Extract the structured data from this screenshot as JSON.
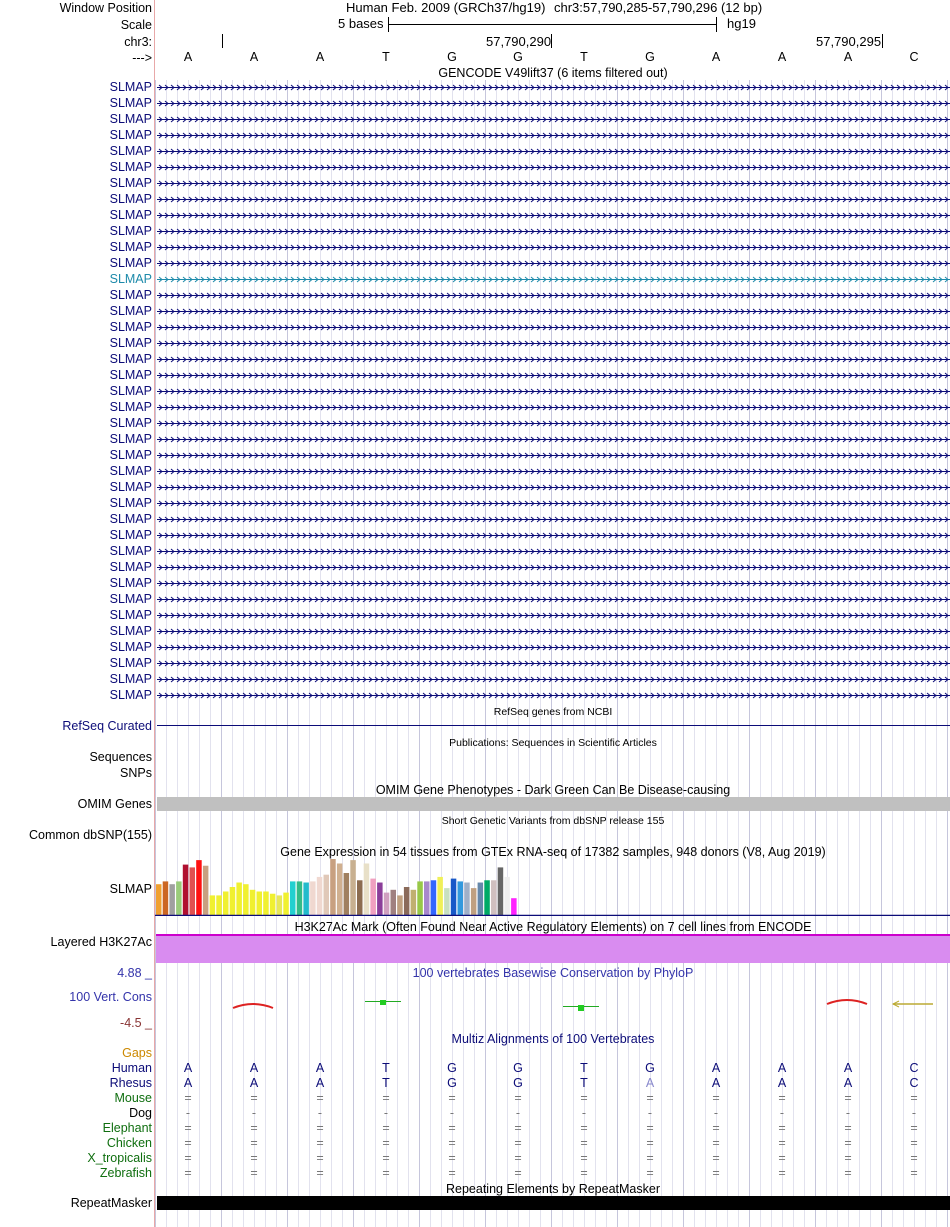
{
  "header": {
    "window_position_label": "Window Position",
    "assembly": "Human Feb. 2009 (GRCh37/hg19)",
    "position": "chr3:57,790,285-57,790,296 (12 bp)",
    "scale_label": "Scale",
    "scale_text": "5 bases",
    "scale_db": "hg19",
    "chrom_label": "chr3:",
    "coord1": "57,790,290",
    "coord2": "57,790,295",
    "strand_label": "--->"
  },
  "sequence": [
    "A",
    "A",
    "A",
    "T",
    "G",
    "G",
    "T",
    "G",
    "A",
    "A",
    "A",
    "C"
  ],
  "gencode": {
    "title": "GENCODE V49lift37 (6 items filtered out)",
    "gene": "SLMAP",
    "count": 39,
    "highlight_index": 12,
    "colors": {
      "normal": "#0c0c78",
      "highlight": "#1d8aaa"
    }
  },
  "refseq": {
    "label": "RefSeq Curated",
    "title": "RefSeq genes from NCBI"
  },
  "publications": {
    "title": "Publications: Sequences in Scientific Articles",
    "label1": "Sequences",
    "label2": "SNPs"
  },
  "omim": {
    "label": "OMIM Genes",
    "title": "OMIM Gene Phenotypes - Dark Green Can Be Disease-causing",
    "color": "#0f6e0f"
  },
  "dbsnp": {
    "label": "Common dbSNP(155)",
    "title": "Short Genetic Variants from dbSNP release 155"
  },
  "gtex": {
    "label": "SLMAP",
    "title": "Gene Expression in 54 tissues from GTEx RNA-seq of 17382 samples, 948 donors (V8, Aug 2019)",
    "values": [
      0.55,
      0.6,
      0.55,
      0.6,
      0.9,
      0.85,
      0.98,
      0.88,
      0.35,
      0.35,
      0.42,
      0.5,
      0.58,
      0.55,
      0.45,
      0.42,
      0.42,
      0.38,
      0.35,
      0.4,
      0.6,
      0.6,
      0.58,
      0.6,
      0.68,
      0.72,
      1.0,
      0.92,
      0.75,
      0.98,
      0.62,
      0.92,
      0.65,
      0.58,
      0.4,
      0.45,
      0.35,
      0.5,
      0.45,
      0.6,
      0.6,
      0.62,
      0.68,
      0.48,
      0.65,
      0.6,
      0.58,
      0.48,
      0.58,
      0.62,
      0.62,
      0.85,
      0.68,
      0.3
    ],
    "colors": [
      "#f0a030",
      "#cc6622",
      "#a0a0a0",
      "#9acc7a",
      "#b01030",
      "#e05050",
      "#ff1111",
      "#c8a080",
      "#f0f030",
      "#f0f030",
      "#f0f030",
      "#f0f030",
      "#f0f030",
      "#f0f030",
      "#f0f030",
      "#f0f030",
      "#f0f030",
      "#f0f030",
      "#e8e858",
      "#f0f030",
      "#22d0d0",
      "#33bb88",
      "#22bbcc",
      "#f0d8d0",
      "#f0d8d0",
      "#e0c8b8",
      "#c8a080",
      "#d0b090",
      "#a08060",
      "#c8b090",
      "#8c6c50",
      "#e8e0c8",
      "#f0a0c0",
      "#8b3e9a",
      "#d0a0c0",
      "#a08080",
      "#c0a080",
      "#8a6a5a",
      "#c0b070",
      "#98c848",
      "#a888cc",
      "#3366ff",
      "#f0f058",
      "#c8e0c0",
      "#1858c8",
      "#3399dd",
      "#a0b0c8",
      "#c0a080",
      "#6688aa",
      "#00aa66",
      "#d0c0c0",
      "#666666",
      "#eeeeee",
      "#ff22ff"
    ]
  },
  "h3k27ac": {
    "label": "Layered H3K27Ac",
    "title": "H3K27Ac Mark (Often Found Near Active Regulatory Elements) on 7 cell lines from ENCODE",
    "color": "#d98cf0",
    "line_color": "#cc00cc"
  },
  "phylop": {
    "label": "100 Vert. Cons",
    "title": "100 vertebrates Basewise Conservation by PhyloP",
    "max": "4.88 _",
    "min": "-4.5 _"
  },
  "multiz": {
    "title": "Multiz Alignments of 100 Vertebrates",
    "gaps_label": "Gaps",
    "species": [
      {
        "name": "Human",
        "color": "#0c0c78",
        "bases": [
          "A",
          "A",
          "A",
          "T",
          "G",
          "G",
          "T",
          "G",
          "A",
          "A",
          "A",
          "C"
        ]
      },
      {
        "name": "Rhesus",
        "color": "#0c0c78",
        "bases": [
          "A",
          "A",
          "A",
          "T",
          "G",
          "G",
          "T",
          "A",
          "A",
          "A",
          "A",
          "C"
        ]
      },
      {
        "name": "Mouse",
        "color": "#0f6e0f",
        "bases": [
          "=",
          "=",
          "=",
          "=",
          "=",
          "=",
          "=",
          "=",
          "=",
          "=",
          "=",
          "="
        ]
      },
      {
        "name": "Dog",
        "color": "#000000",
        "bases": [
          "-",
          "-",
          "-",
          "-",
          "-",
          "-",
          "-",
          "-",
          "-",
          "-",
          "-",
          "-"
        ]
      },
      {
        "name": "Elephant",
        "color": "#0f6e0f",
        "bases": [
          "=",
          "=",
          "=",
          "=",
          "=",
          "=",
          "=",
          "=",
          "=",
          "=",
          "=",
          "="
        ]
      },
      {
        "name": "Chicken",
        "color": "#0f6e0f",
        "bases": [
          "=",
          "=",
          "=",
          "=",
          "=",
          "=",
          "=",
          "=",
          "=",
          "=",
          "=",
          "="
        ]
      },
      {
        "name": "X_tropicalis",
        "color": "#0f6e0f",
        "bases": [
          "=",
          "=",
          "=",
          "=",
          "=",
          "=",
          "=",
          "=",
          "=",
          "=",
          "=",
          "="
        ]
      },
      {
        "name": "Zebrafish",
        "color": "#0f6e0f",
        "bases": [
          "=",
          "=",
          "=",
          "=",
          "=",
          "=",
          "=",
          "=",
          "=",
          "=",
          "=",
          "="
        ]
      }
    ]
  },
  "repeatmasker": {
    "label": "RepeatMasker",
    "title": "Repeating Elements by RepeatMasker"
  }
}
